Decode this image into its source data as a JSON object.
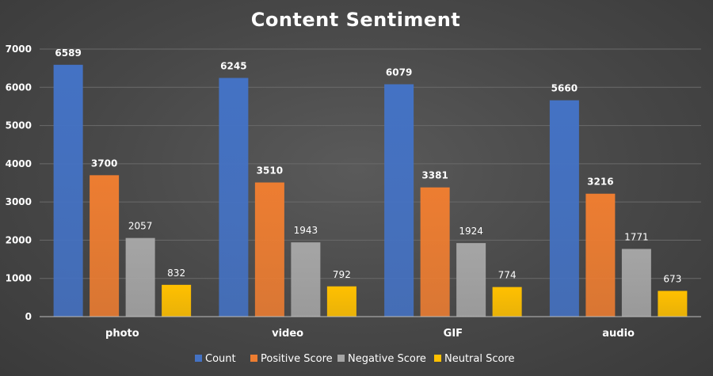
{
  "chart_data": {
    "type": "bar",
    "title": "Content Sentiment",
    "categories": [
      "photo",
      "video",
      "GIF",
      "audio"
    ],
    "series": [
      {
        "name": "Count",
        "values": [
          6589,
          6245,
          6079,
          5660
        ],
        "color": "#4472c4"
      },
      {
        "name": "Positive Score",
        "values": [
          3700,
          3510,
          3381,
          3216
        ],
        "color": "#ed7d31"
      },
      {
        "name": "Negative Score",
        "values": [
          2057,
          1943,
          1924,
          1771
        ],
        "color": "#a5a5a5"
      },
      {
        "name": "Neutral Score",
        "values": [
          832,
          792,
          774,
          673
        ],
        "color": "#ffc000"
      }
    ],
    "ylim": [
      0,
      7000
    ],
    "yticks": [
      0,
      1000,
      2000,
      3000,
      4000,
      5000,
      6000,
      7000
    ],
    "grid": true,
    "legend": "bottom"
  }
}
